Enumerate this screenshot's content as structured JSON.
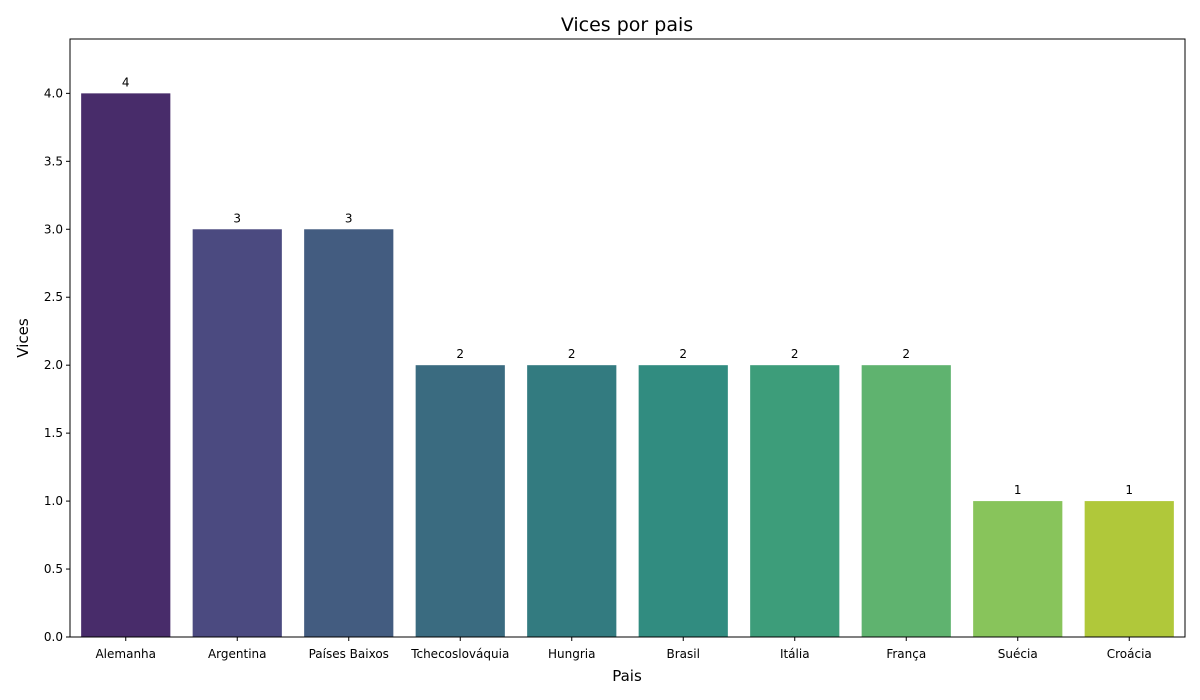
{
  "chart_data": {
    "type": "bar",
    "title": "Vices por pais",
    "xlabel": "Pais",
    "ylabel": "Vices",
    "categories": [
      "Alemanha",
      "Argentina",
      "Países Baixos",
      "Tchecoslováquia",
      "Hungria",
      "Brasil",
      "Itália",
      "França",
      "Suécia",
      "Croácia"
    ],
    "values": [
      4,
      3,
      3,
      2,
      2,
      2,
      2,
      2,
      1,
      1
    ],
    "data_labels": [
      "4",
      "3",
      "3",
      "2",
      "2",
      "2",
      "2",
      "2",
      "1",
      "1"
    ],
    "colors": [
      "#482c6a",
      "#4b4a80",
      "#435c80",
      "#3a6b80",
      "#337b80",
      "#318c80",
      "#3d9d7a",
      "#5fb36f",
      "#88c45b",
      "#b0c83a"
    ],
    "ylim": [
      0,
      4.4
    ],
    "yticks": [
      "0.0",
      "0.5",
      "1.0",
      "1.5",
      "2.0",
      "2.5",
      "3.0",
      "3.5",
      "4.0"
    ],
    "grid": false,
    "legend": "none"
  }
}
